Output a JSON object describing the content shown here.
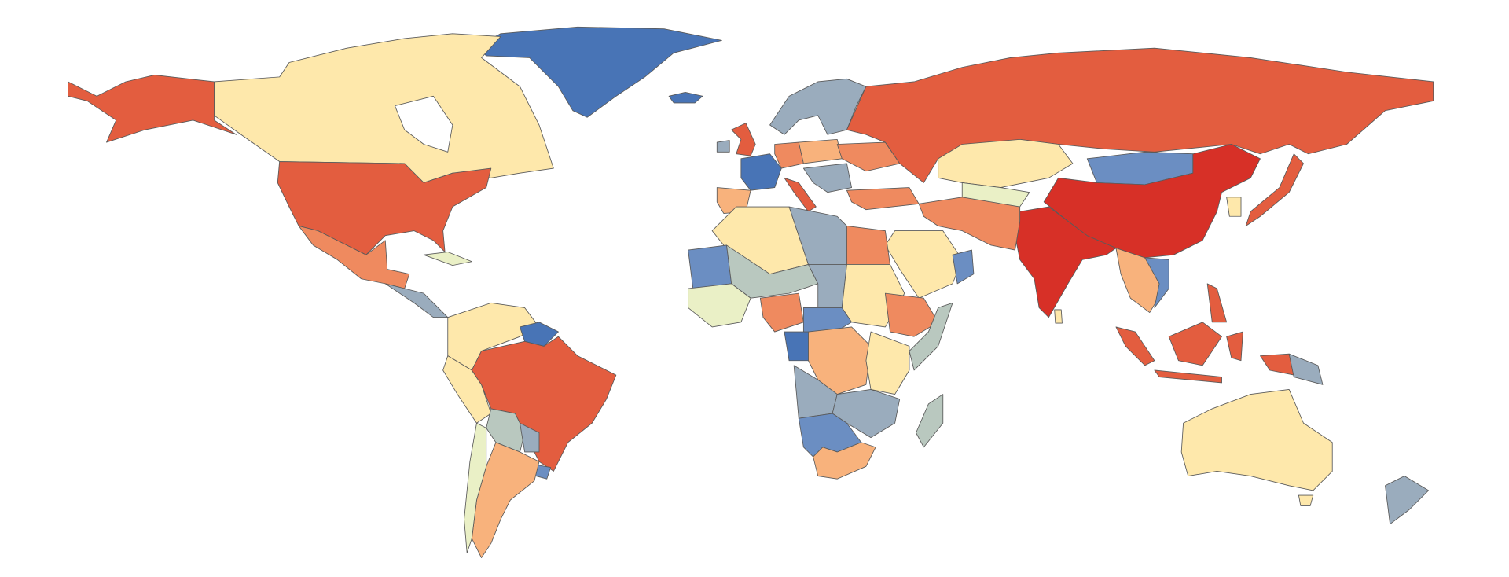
{
  "map": {
    "palette": [
      "#d73027",
      "#e35d3f",
      "#ef8a5f",
      "#f8b27c",
      "#fee8ab",
      "#eaf0c6",
      "#b9c8bf",
      "#9aacbd",
      "#6b8ec2",
      "#4874b6"
    ]
  }
}
